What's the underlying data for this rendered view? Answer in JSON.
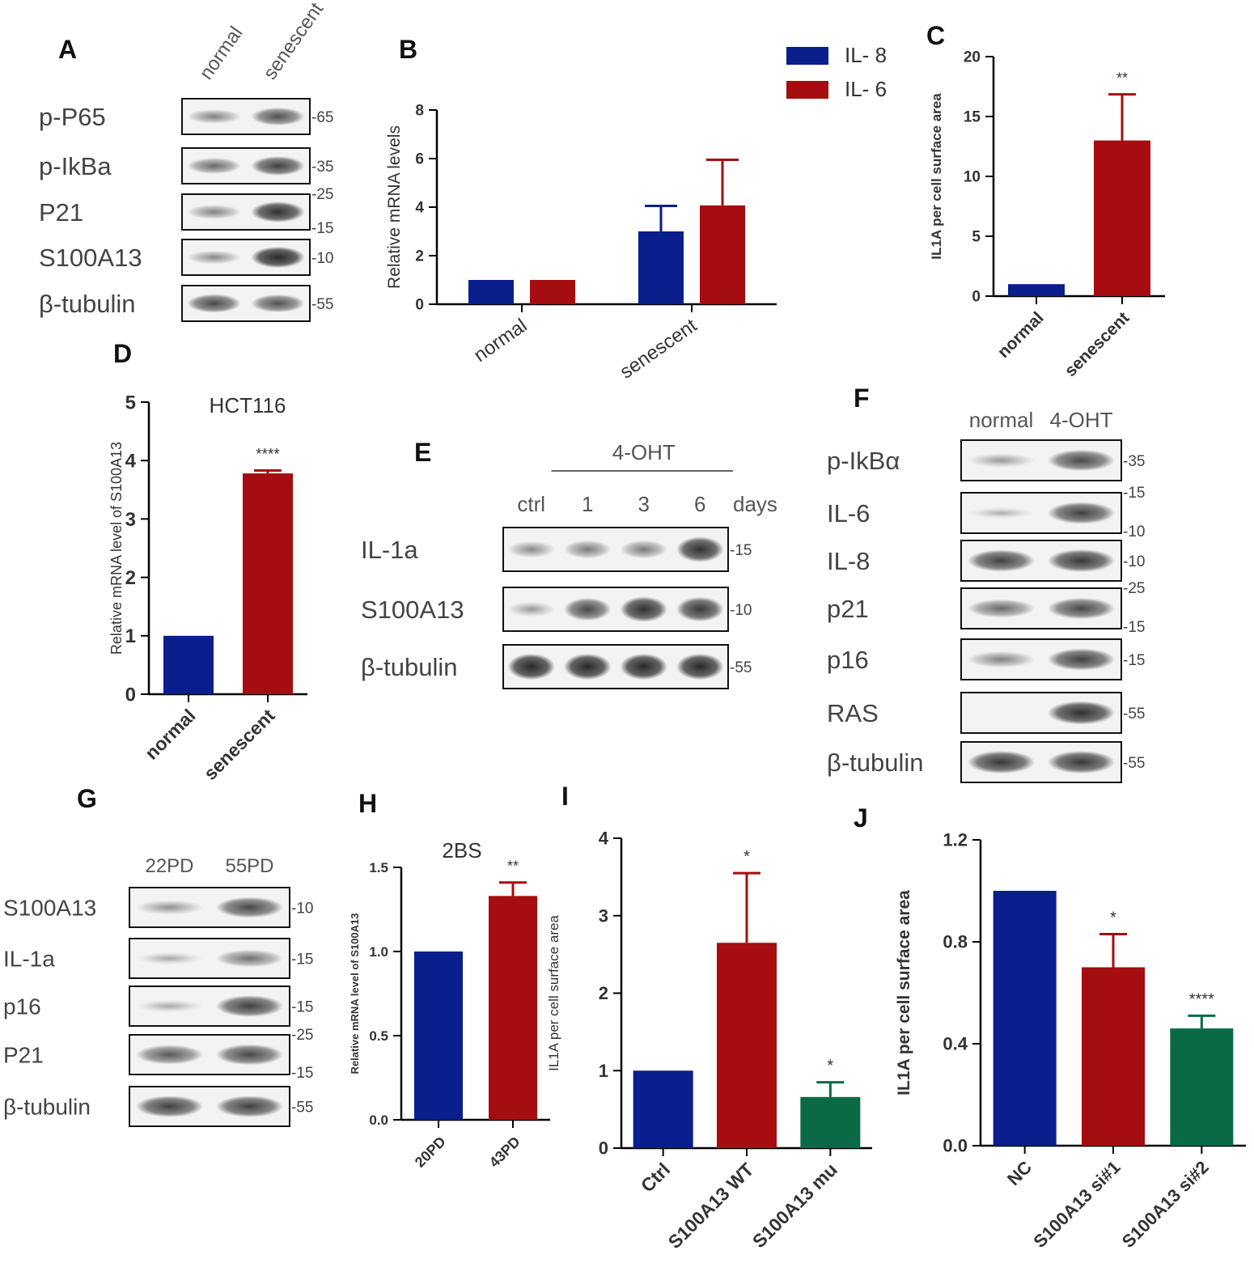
{
  "colors": {
    "blue": "#0a1e8c",
    "red": "#a50d10",
    "green": "#0a6a45",
    "axis": "#000000",
    "text": "#333333"
  },
  "panels": {
    "A": {
      "letter": "A",
      "lanes": [
        "normal",
        "senescent"
      ],
      "rows": [
        {
          "label": "p-P65",
          "markers": [
            "-65"
          ],
          "bands": [
            0.45,
            0.75
          ]
        },
        {
          "label": "p-IkBa",
          "markers": [
            "-35"
          ],
          "bands": [
            0.6,
            0.85
          ]
        },
        {
          "label": "P21",
          "markers": [
            "-25",
            "-15"
          ],
          "bands": [
            0.45,
            0.95
          ]
        },
        {
          "label": "S100A13",
          "markers": [
            "-10"
          ],
          "bands": [
            0.4,
            1.0
          ]
        },
        {
          "label": "β-tubulin",
          "markers": [
            "-55"
          ],
          "bands": [
            0.8,
            0.75
          ]
        }
      ]
    },
    "E": {
      "letter": "E",
      "treatment": "4-OHT",
      "lanes": [
        "ctrl",
        "1",
        "3",
        "6"
      ],
      "lane_unit": "days",
      "rows": [
        {
          "label": "IL-1a",
          "markers": [
            "-15"
          ],
          "bands": [
            0.4,
            0.5,
            0.5,
            0.95
          ]
        },
        {
          "label": "S100A13",
          "markers": [
            "-10"
          ],
          "bands": [
            0.3,
            0.8,
            0.95,
            0.9
          ]
        },
        {
          "label": "β-tubulin",
          "markers": [
            "-55"
          ],
          "bands": [
            1.0,
            1.0,
            1.0,
            1.0
          ]
        }
      ]
    },
    "F": {
      "letter": "F",
      "lanes": [
        "normal",
        "4-OHT"
      ],
      "rows": [
        {
          "label": "p-IkBα",
          "markers": [
            "-35"
          ],
          "bands": [
            0.3,
            0.8
          ]
        },
        {
          "label": "IL-6",
          "markers": [
            "-15",
            "-10"
          ],
          "bands": [
            0.15,
            0.85
          ]
        },
        {
          "label": "IL-8",
          "markers": [
            "-10"
          ],
          "bands": [
            0.85,
            0.9
          ]
        },
        {
          "label": "p21",
          "markers": [
            "-25",
            "-15"
          ],
          "bands": [
            0.6,
            0.8
          ]
        },
        {
          "label": "p16",
          "markers": [
            "-15"
          ],
          "bands": [
            0.45,
            0.85
          ]
        },
        {
          "label": "RAS",
          "markers": [
            "-55"
          ],
          "bands": [
            0.0,
            0.95
          ]
        },
        {
          "label": "β-tubulin",
          "markers": [
            "-55"
          ],
          "bands": [
            0.9,
            0.9
          ]
        }
      ]
    },
    "G": {
      "letter": "G",
      "lanes": [
        "22PD",
        "55PD"
      ],
      "rows": [
        {
          "label": "S100A13",
          "markers": [
            "-10"
          ],
          "bands": [
            0.35,
            0.8
          ]
        },
        {
          "label": "IL-1a",
          "markers": [
            "-15"
          ],
          "bands": [
            0.2,
            0.55
          ]
        },
        {
          "label": "p16",
          "markers": [
            "-15"
          ],
          "bands": [
            0.2,
            0.85
          ]
        },
        {
          "label": "P21",
          "markers": [
            "-25",
            "-15"
          ],
          "bands": [
            0.7,
            0.8
          ]
        },
        {
          "label": "β-tubulin",
          "markers": [
            "-55"
          ],
          "bands": [
            0.85,
            0.85
          ]
        }
      ]
    }
  },
  "chart_data": [
    {
      "id": "B",
      "type": "bar",
      "letter": "B",
      "categories": [
        "normal",
        "senescent"
      ],
      "series": [
        {
          "name": "IL- 8",
          "color": "#0a1e8c",
          "values": [
            1.0,
            3.0
          ],
          "errors": [
            0,
            1.05
          ]
        },
        {
          "name": "IL- 6",
          "color": "#a50d10",
          "values": [
            1.0,
            4.07
          ],
          "errors": [
            0,
            1.88
          ]
        }
      ],
      "ylabel": "Relative mRNA levels",
      "ylim": [
        0,
        8
      ],
      "yticks": [
        "0",
        "2",
        "4",
        "6",
        "8"
      ],
      "legend": "top-right"
    },
    {
      "id": "C",
      "type": "bar",
      "letter": "C",
      "categories": [
        "normal",
        "senescent"
      ],
      "values": [
        1.0,
        13.0
      ],
      "errors": [
        0,
        3.85
      ],
      "colors": [
        "#0a1e8c",
        "#a50d10"
      ],
      "sig": [
        "",
        "**"
      ],
      "ylabel": "IL1A per cell surface area",
      "ylim": [
        0,
        20
      ],
      "yticks": [
        "0",
        "5",
        "10",
        "15",
        "20"
      ]
    },
    {
      "id": "D",
      "type": "bar",
      "letter": "D",
      "title": "HCT116",
      "categories": [
        "normal",
        "senescent"
      ],
      "values": [
        1.0,
        3.78
      ],
      "errors": [
        0,
        0.05
      ],
      "colors": [
        "#0a1e8c",
        "#a50d10"
      ],
      "sig": [
        "",
        "****"
      ],
      "ylabel": "Relative mRNA level of  S100A13",
      "ylim": [
        0,
        5
      ],
      "yticks": [
        "0",
        "1",
        "2",
        "3",
        "4",
        "5"
      ]
    },
    {
      "id": "H",
      "type": "bar",
      "letter": "H",
      "title": "2BS",
      "categories": [
        "20PD",
        "43PD"
      ],
      "values": [
        1.0,
        1.33
      ],
      "errors": [
        0,
        0.08
      ],
      "colors": [
        "#0a1e8c",
        "#a50d10"
      ],
      "sig": [
        "",
        "**"
      ],
      "ylabel": "Relative mRNA level of S100A13",
      "ylim": [
        0,
        1.5
      ],
      "yticks": [
        "0.0",
        "0.5",
        "1.0",
        "1.5"
      ]
    },
    {
      "id": "I",
      "type": "bar",
      "letter": "I",
      "categories": [
        "Ctrl",
        "S100A13 WT",
        "S100A13 mu"
      ],
      "values": [
        1.0,
        2.65,
        0.66
      ],
      "errors": [
        0,
        0.9,
        0.19
      ],
      "colors": [
        "#0a1e8c",
        "#a50d10",
        "#0a6a45"
      ],
      "sig": [
        "",
        "*",
        "*"
      ],
      "ylabel": "IL1A per cell surface area",
      "ylim": [
        0,
        4
      ],
      "yticks": [
        "0",
        "1",
        "2",
        "3",
        "4"
      ]
    },
    {
      "id": "J",
      "type": "bar",
      "letter": "J",
      "categories": [
        "NC",
        "S100A13 si#1",
        "S100A13 si#2"
      ],
      "values": [
        1.0,
        0.7,
        0.46
      ],
      "errors": [
        0,
        0.13,
        0.05
      ],
      "colors": [
        "#0a1e8c",
        "#a50d10",
        "#0a6a45"
      ],
      "sig": [
        "",
        "*",
        "****"
      ],
      "ylabel": "IL1A per cell surface area",
      "ylim": [
        0,
        1.2
      ],
      "yticks": [
        "0.0",
        "0.4",
        "0.8",
        "1.2"
      ]
    }
  ]
}
